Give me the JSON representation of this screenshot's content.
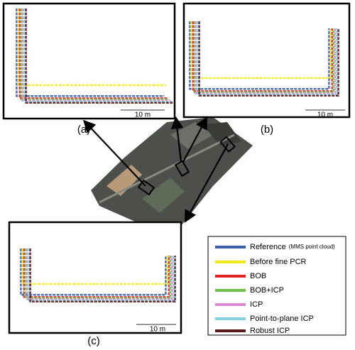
{
  "panels": [
    {
      "label": "(a)",
      "scale": "10 m"
    },
    {
      "label": "(b)",
      "scale": "10 m"
    },
    {
      "label": "(c)",
      "scale": "10 m"
    }
  ],
  "legend": [
    {
      "text": "Reference",
      "note": "(MMS point cloud)",
      "color": "#3a5fa8"
    },
    {
      "text": "Before fine PCR",
      "color": "#f2ea1c"
    },
    {
      "text": "BOB",
      "color": "#e02424"
    },
    {
      "text": "BOB+ICP",
      "color": "#6cc04a"
    },
    {
      "text": "ICP",
      "color": "#d98ad0"
    },
    {
      "text": "Point-to-plane ICP",
      "color": "#84d3e3"
    },
    {
      "text": "Robust ICP",
      "color": "#5a1818"
    }
  ]
}
